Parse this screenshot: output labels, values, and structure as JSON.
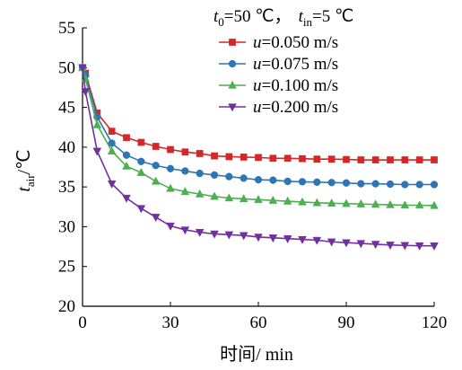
{
  "chart_data": {
    "type": "line",
    "title": "",
    "condition": {
      "t0_symbol": "t",
      "t0_sub": "0",
      "t0_value": "=50 ℃，",
      "tin_symbol": "t",
      "tin_sub": "in",
      "tin_value": "=5 ℃"
    },
    "xlabel": "时间/ min",
    "ylabel": {
      "symbol": "t",
      "sub": "air",
      "unit": "/℃"
    },
    "xlim": [
      0,
      120
    ],
    "ylim": [
      20,
      55
    ],
    "xticks": [
      0,
      30,
      60,
      90,
      120
    ],
    "yticks": [
      20,
      25,
      30,
      35,
      40,
      45,
      50,
      55
    ],
    "grid": false,
    "legend_position": "top-right",
    "x": [
      0,
      1,
      5,
      10,
      15,
      20,
      25,
      30,
      35,
      40,
      45,
      50,
      55,
      60,
      65,
      70,
      75,
      80,
      85,
      90,
      95,
      100,
      105,
      110,
      115,
      120
    ],
    "series": [
      {
        "name_symbol": "u",
        "name_value": "=0.050 m/s",
        "color": "#d62728",
        "marker": "square",
        "values": [
          50,
          49.3,
          44.3,
          42.0,
          41.2,
          40.6,
          40.1,
          39.7,
          39.4,
          39.2,
          38.9,
          38.8,
          38.75,
          38.7,
          38.6,
          38.6,
          38.55,
          38.5,
          38.5,
          38.45,
          38.4,
          38.4,
          38.4,
          38.4,
          38.4,
          38.4
        ]
      },
      {
        "name_symbol": "u",
        "name_value": "=0.075 m/s",
        "color": "#2e75b6",
        "marker": "circle",
        "values": [
          50,
          49.0,
          43.8,
          40.5,
          39.0,
          38.2,
          37.7,
          37.3,
          37.0,
          36.7,
          36.5,
          36.3,
          36.1,
          35.9,
          35.85,
          35.7,
          35.65,
          35.6,
          35.55,
          35.5,
          35.4,
          35.4,
          35.35,
          35.3,
          35.3,
          35.3
        ]
      },
      {
        "name_symbol": "u",
        "name_value": "=0.100 m/s",
        "color": "#4caf50",
        "marker": "triangle-up",
        "values": [
          50,
          48.6,
          42.8,
          39.5,
          37.6,
          36.8,
          35.7,
          34.8,
          34.4,
          34.1,
          33.8,
          33.6,
          33.5,
          33.4,
          33.3,
          33.2,
          33.1,
          33.0,
          32.95,
          32.9,
          32.85,
          32.8,
          32.75,
          32.7,
          32.7,
          32.65
        ]
      },
      {
        "name_symbol": "u",
        "name_value": "=0.200 m/s",
        "color": "#7030a0",
        "marker": "triangle-down",
        "values": [
          50,
          47.0,
          39.5,
          35.4,
          33.6,
          32.3,
          31.2,
          30.1,
          29.6,
          29.3,
          29.1,
          29.0,
          28.9,
          28.7,
          28.6,
          28.5,
          28.4,
          28.3,
          28.1,
          28.0,
          27.9,
          27.8,
          27.7,
          27.65,
          27.6,
          27.6
        ]
      }
    ]
  }
}
